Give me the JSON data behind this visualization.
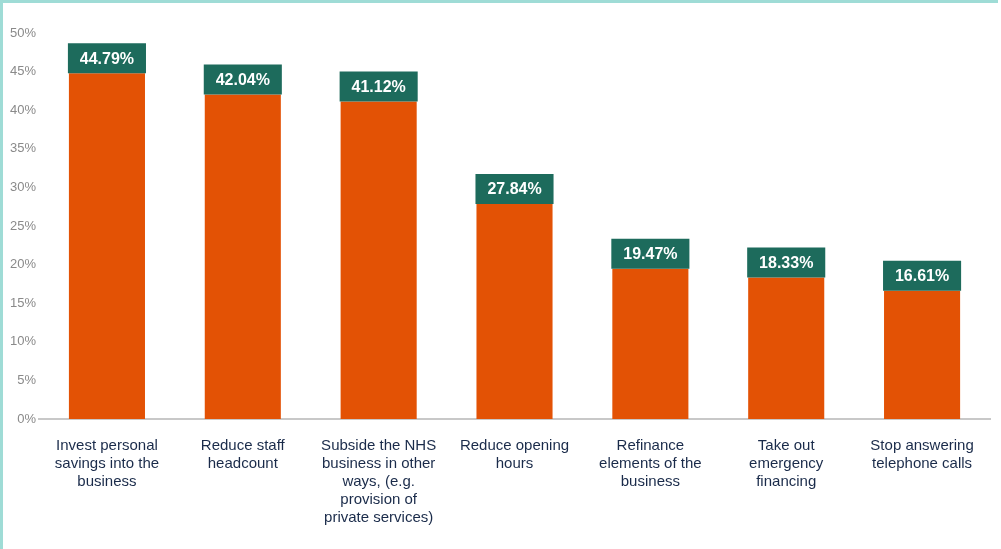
{
  "chart_data": {
    "type": "bar",
    "categories": [
      "Invest personal savings into the business",
      "Reduce staff headcount",
      "Subside the NHS business in other ways, (e.g. provision of private services)",
      "Reduce opening hours",
      "Refinance elements of the business",
      "Take out emergency financing",
      "Stop answering telephone calls"
    ],
    "values": [
      44.79,
      42.04,
      41.12,
      27.84,
      19.47,
      18.33,
      16.61
    ],
    "value_labels": [
      "44.79%",
      "42.04%",
      "41.12%",
      "27.84%",
      "19.47%",
      "18.33%",
      "16.61%"
    ],
    "color": "#e35205",
    "ylim": [
      0,
      50
    ],
    "yticks": [
      {
        "value": 0,
        "label": "0%"
      },
      {
        "value": 5,
        "label": "5%"
      },
      {
        "value": 10,
        "label": "10%"
      },
      {
        "value": 15,
        "label": "15%"
      },
      {
        "value": 20,
        "label": "20%"
      },
      {
        "value": 25,
        "label": "25%"
      },
      {
        "value": 30,
        "label": "30%"
      },
      {
        "value": 35,
        "label": "35%"
      },
      {
        "value": 40,
        "label": "40%"
      },
      {
        "value": 45,
        "label": "45%"
      },
      {
        "value": 50,
        "label": "50%"
      }
    ],
    "grid": false,
    "legend": false
  }
}
